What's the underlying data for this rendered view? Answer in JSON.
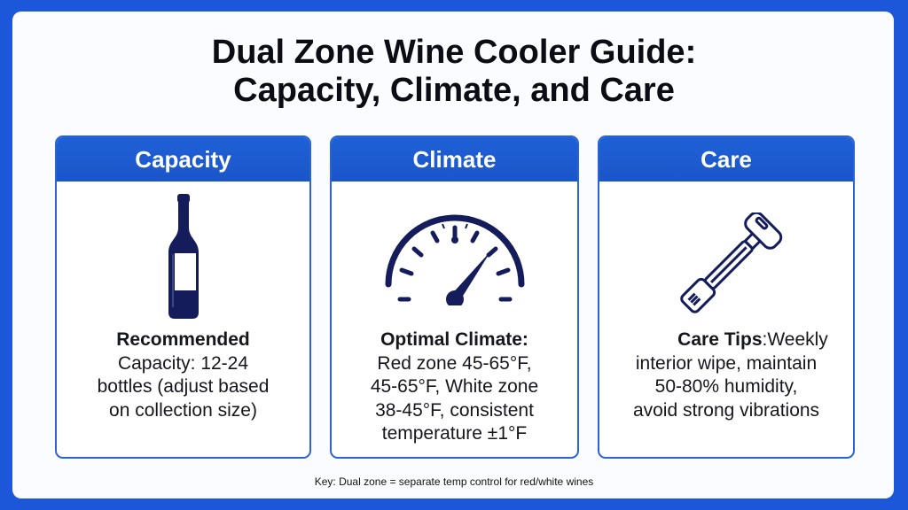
{
  "title": {
    "line1": "Dual Zone Wine Cooler Guide:",
    "line2": "Capacity, Climate, and Care"
  },
  "cards": [
    {
      "header": "Capacity",
      "icon": "wine-bottle-icon",
      "bold": "Recommended",
      "lines": [
        "Capacity: 12-24",
        "bottles (adjust based",
        "on collection size)"
      ]
    },
    {
      "header": "Climate",
      "icon": "gauge-icon",
      "bold": "Optimal Climate:",
      "lines": [
        "Red zone 45-65°F,",
        "45-65°F, White zone",
        "38-45°F, consistent",
        "temperature ±1°F"
      ]
    },
    {
      "header": "Care",
      "icon": "cleaning-tool-icon",
      "bold": "Care Tips",
      "bold_suffix": ":",
      "inline": "Weekly",
      "lines": [
        "interior wipe, maintain",
        "50-80% humidity,",
        "avoid strong vibrations"
      ]
    }
  ],
  "key": "Key: Dual zone = separate temp control for red/white wines",
  "colors": {
    "background": "#1b57d8",
    "header": "#1f60d6",
    "icon": "#141c5c"
  }
}
